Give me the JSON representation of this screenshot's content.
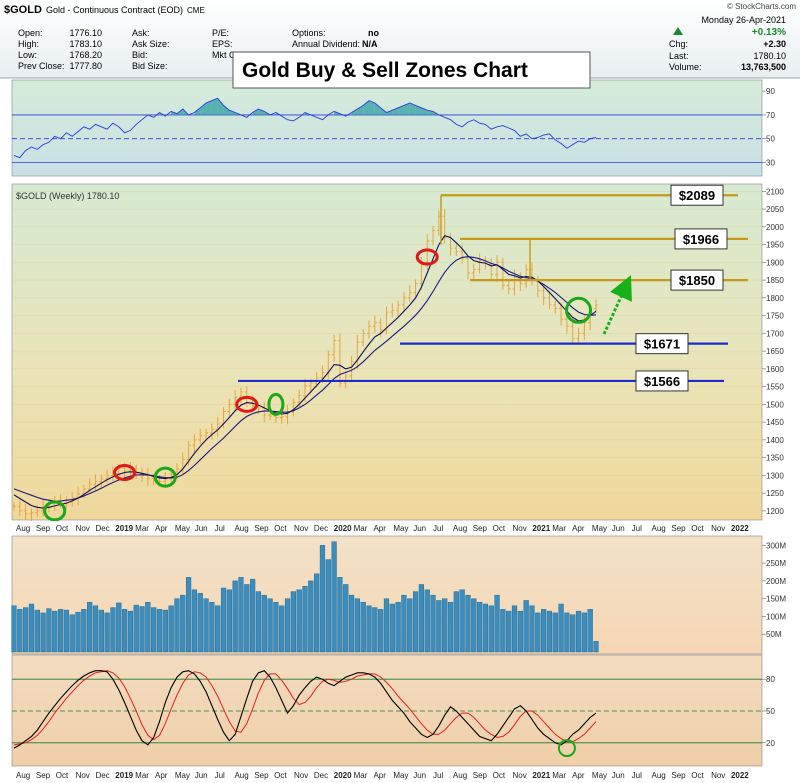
{
  "header": {
    "symbol": "$GOLD",
    "description": "Gold - Continuous Contract (EOD)",
    "exchange": "CME",
    "copyright": "© StockCharts.com",
    "date": "Monday  26-Apr-2021",
    "open_label": "Open:",
    "open": "1776.10",
    "high_label": "High:",
    "high": "1783.10",
    "low_label": "Low:",
    "low": "1768.20",
    "prev_label": "Prev Close:",
    "prev": "1777.80",
    "ask_label": "Ask:",
    "asksize_label": "Ask Size:",
    "bid_label": "Bid:",
    "bidsize_label": "Bid Size:",
    "pe_label": "P/E:",
    "eps_label": "EPS:",
    "mktcap_label": "Mkt Ca",
    "options_label": "Options:",
    "options": "no",
    "div_label": "Annual Dividend:",
    "div": "N/A",
    "pct_change": "+0.13%",
    "chg_label": "Chg:",
    "chg": "+2.30",
    "last_label": "Last:",
    "last": "1780.10",
    "volume_label": "Volume:",
    "volume": "13,763,500",
    "up_color": "#1a8a2a"
  },
  "overlay_title": "Gold Buy & Sell Zones Chart",
  "price_legend": "$GOLD (Weekly) 1780.10",
  "x_axis_labels": [
    "Aug",
    "Sep",
    "Oct",
    "Nov",
    "Dec",
    "2019",
    "Mar",
    "Apr",
    "May",
    "Jun",
    "Jul",
    "Aug",
    "Sep",
    "Oct",
    "Nov",
    "Dec",
    "2020",
    "Mar",
    "Apr",
    "May",
    "Jun",
    "Jul",
    "Aug",
    "Sep",
    "Oct",
    "Nov",
    "2021",
    "Mar",
    "Apr",
    "May",
    "Jun",
    "Jul",
    "Aug",
    "Sep",
    "Oct",
    "Nov",
    "2022"
  ],
  "chart_data": [
    {
      "type": "line",
      "name": "rsi-panel",
      "yticks": [
        30,
        50,
        70,
        90
      ],
      "ylim": [
        22,
        96
      ],
      "values": [
        36,
        34,
        40,
        43,
        41,
        45,
        47,
        52,
        50,
        55,
        52,
        56,
        60,
        58,
        62,
        60,
        58,
        63,
        60,
        55,
        57,
        62,
        66,
        70,
        68,
        72,
        69,
        73,
        71,
        75,
        70,
        72,
        76,
        80,
        82,
        84,
        78,
        74,
        72,
        70,
        68,
        72,
        75,
        73,
        70,
        72,
        69,
        66,
        65,
        68,
        72,
        70,
        68,
        66,
        70,
        73,
        71,
        69,
        72,
        75,
        78,
        82,
        80,
        76,
        72,
        74,
        76,
        78,
        80,
        78,
        76,
        74,
        73,
        70,
        68,
        66,
        62,
        60,
        64,
        66,
        63,
        62,
        58,
        60,
        61,
        59,
        57,
        52,
        54,
        50,
        51,
        53,
        54,
        49,
        46,
        42,
        45,
        48,
        47,
        50,
        51
      ]
    },
    {
      "type": "line",
      "name": "price-panel",
      "title": "$GOLD (Weekly) 1780.10",
      "yticks": [
        1200,
        1250,
        1300,
        1350,
        1400,
        1450,
        1500,
        1550,
        1600,
        1650,
        1700,
        1750,
        1800,
        1850,
        1900,
        1950,
        2000,
        2050,
        2100
      ],
      "ylim": [
        1180,
        2115
      ],
      "close": [
        1213,
        1200,
        1192,
        1195,
        1200,
        1214,
        1222,
        1226,
        1222,
        1230,
        1237,
        1248,
        1262,
        1275,
        1283,
        1290,
        1300,
        1305,
        1320,
        1312,
        1318,
        1305,
        1300,
        1292,
        1285,
        1283,
        1290,
        1303,
        1318,
        1345,
        1385,
        1400,
        1412,
        1420,
        1430,
        1445,
        1480,
        1500,
        1520,
        1535,
        1505,
        1495,
        1490,
        1470,
        1467,
        1463,
        1465,
        1478,
        1505,
        1525,
        1552,
        1560,
        1575,
        1590,
        1640,
        1680,
        1560,
        1580,
        1620,
        1675,
        1700,
        1720,
        1730,
        1710,
        1760,
        1765,
        1780,
        1800,
        1815,
        1840,
        1900,
        1960,
        1990,
        2030,
        1970,
        1940,
        1930,
        1910,
        1870,
        1880,
        1905,
        1895,
        1865,
        1900,
        1835,
        1825,
        1860,
        1840,
        1880,
        1850,
        1820,
        1800,
        1780,
        1770,
        1740,
        1720,
        1685,
        1700,
        1730,
        1770,
        1780
      ],
      "ma_fast": [
        1245,
        1235,
        1225,
        1215,
        1210,
        1208,
        1210,
        1214,
        1218,
        1222,
        1228,
        1236,
        1246,
        1258,
        1268,
        1278,
        1288,
        1296,
        1303,
        1308,
        1310,
        1309,
        1306,
        1302,
        1297,
        1293,
        1291,
        1294,
        1302,
        1318,
        1340,
        1362,
        1382,
        1400,
        1415,
        1428,
        1445,
        1463,
        1482,
        1498,
        1505,
        1503,
        1498,
        1490,
        1482,
        1476,
        1473,
        1475,
        1485,
        1500,
        1518,
        1535,
        1553,
        1570,
        1590,
        1612,
        1610,
        1600,
        1605,
        1625,
        1648,
        1670,
        1690,
        1700,
        1715,
        1730,
        1745,
        1762,
        1780,
        1800,
        1830,
        1870,
        1910,
        1950,
        1975,
        1970,
        1955,
        1938,
        1918,
        1905,
        1900,
        1898,
        1890,
        1893,
        1880,
        1866,
        1862,
        1856,
        1860,
        1858,
        1848,
        1832,
        1815,
        1798,
        1780,
        1762,
        1745,
        1735,
        1738,
        1750,
        1762
      ],
      "ma_slow": [
        1262,
        1256,
        1250,
        1244,
        1238,
        1233,
        1230,
        1228,
        1228,
        1230,
        1232,
        1236,
        1242,
        1249,
        1256,
        1264,
        1272,
        1280,
        1287,
        1293,
        1298,
        1301,
        1302,
        1301,
        1299,
        1296,
        1294,
        1293,
        1295,
        1302,
        1314,
        1328,
        1344,
        1360,
        1376,
        1390,
        1405,
        1421,
        1438,
        1454,
        1466,
        1474,
        1479,
        1481,
        1481,
        1480,
        1478,
        1478,
        1482,
        1490,
        1500,
        1512,
        1526,
        1540,
        1556,
        1573,
        1584,
        1590,
        1596,
        1606,
        1620,
        1636,
        1652,
        1665,
        1678,
        1692,
        1706,
        1720,
        1735,
        1751,
        1770,
        1792,
        1818,
        1846,
        1872,
        1892,
        1906,
        1914,
        1916,
        1914,
        1910,
        1904,
        1897,
        1892,
        1884,
        1875,
        1868,
        1861,
        1857,
        1853,
        1847,
        1838,
        1827,
        1815,
        1801,
        1787,
        1772,
        1760,
        1753,
        1751,
        1752
      ],
      "resistance_levels": [
        {
          "value": 2089,
          "label": "$2089"
        },
        {
          "value": 1966,
          "label": "$1966"
        },
        {
          "value": 1850,
          "label": "$1850"
        }
      ],
      "support_levels": [
        {
          "value": 1671,
          "label": "$1671"
        },
        {
          "value": 1566,
          "label": "$1566"
        }
      ],
      "sell_zone_markers": [
        {
          "x": 19,
          "y": 1308
        },
        {
          "x": 40,
          "y": 1500
        },
        {
          "x": 71,
          "y": 1915
        }
      ],
      "buy_zone_markers": [
        {
          "x": 7,
          "y": 1200
        },
        {
          "x": 26,
          "y": 1295
        },
        {
          "x": 45,
          "y": 1500
        },
        {
          "x": 97,
          "y": 1765
        }
      ]
    },
    {
      "type": "bar",
      "name": "volume-panel",
      "yticks_labels": [
        "50M",
        "100M",
        "150M",
        "200M",
        "250M",
        "300M"
      ],
      "yticks": [
        50,
        100,
        150,
        200,
        250,
        300
      ],
      "ylim": [
        0,
        315
      ],
      "values": [
        130,
        120,
        125,
        135,
        118,
        110,
        122,
        115,
        120,
        118,
        105,
        112,
        120,
        140,
        130,
        118,
        110,
        125,
        138,
        120,
        115,
        132,
        128,
        140,
        125,
        120,
        118,
        130,
        150,
        160,
        210,
        175,
        165,
        150,
        140,
        130,
        180,
        175,
        200,
        210,
        190,
        205,
        170,
        160,
        150,
        140,
        130,
        150,
        170,
        175,
        185,
        200,
        220,
        300,
        260,
        310,
        210,
        190,
        160,
        150,
        140,
        130,
        125,
        120,
        150,
        135,
        140,
        160,
        150,
        170,
        190,
        175,
        160,
        145,
        150,
        140,
        170,
        175,
        160,
        150,
        140,
        135,
        130,
        160,
        120,
        115,
        130,
        115,
        145,
        130,
        110,
        120,
        115,
        110,
        135,
        110,
        105,
        115,
        110,
        120,
        30
      ]
    },
    {
      "type": "line",
      "name": "stochastic-panel",
      "yticks": [
        20,
        50,
        80
      ],
      "ylim": [
        0,
        100
      ],
      "k": [
        15,
        18,
        22,
        26,
        32,
        40,
        48,
        55,
        62,
        68,
        74,
        79,
        83,
        86,
        88,
        88,
        87,
        80,
        70,
        58,
        45,
        32,
        22,
        18,
        25,
        40,
        58,
        72,
        82,
        87,
        88,
        85,
        78,
        68,
        55,
        42,
        30,
        22,
        28,
        45,
        62,
        78,
        86,
        88,
        82,
        72,
        60,
        48,
        55,
        65,
        72,
        78,
        82,
        80,
        76,
        74,
        78,
        82,
        84,
        86,
        86,
        85,
        82,
        76,
        68,
        60,
        54,
        48,
        40,
        34,
        28,
        25,
        28,
        36,
        46,
        54,
        50,
        44,
        38,
        32,
        26,
        24,
        22,
        28,
        36,
        44,
        52,
        55,
        50,
        42,
        34,
        28,
        24,
        20,
        18,
        22,
        28,
        32,
        38,
        44,
        48
      ],
      "d": [
        18,
        19,
        20,
        23,
        27,
        33,
        40,
        48,
        55,
        62,
        68,
        74,
        79,
        83,
        86,
        87,
        88,
        86,
        81,
        73,
        62,
        50,
        37,
        27,
        23,
        27,
        38,
        52,
        65,
        76,
        84,
        87,
        86,
        82,
        74,
        64,
        52,
        40,
        31,
        30,
        38,
        52,
        67,
        79,
        85,
        85,
        79,
        71,
        62,
        56,
        58,
        64,
        72,
        78,
        80,
        79,
        77,
        78,
        80,
        83,
        84,
        85,
        85,
        82,
        77,
        71,
        64,
        58,
        52,
        45,
        38,
        32,
        28,
        28,
        32,
        38,
        44,
        48,
        48,
        44,
        38,
        32,
        28,
        25,
        26,
        30,
        37,
        45,
        50,
        50,
        46,
        40,
        34,
        28,
        24,
        21,
        21,
        24,
        28,
        34,
        40
      ],
      "buy_marker": {
        "x": 95,
        "y": 15
      }
    }
  ],
  "colors": {
    "resistance": "#c89818",
    "support": "#1a2ccf",
    "price_bar": "#e8a63a",
    "ma": "#1a1a80",
    "sell_marker": "#e01818",
    "buy_marker": "#18a818",
    "arrow": "#18b018",
    "volume": "#3a8dbf",
    "stoch_k": "#000000",
    "stoch_d": "#e02020",
    "rsi": "#2a3ae0"
  }
}
